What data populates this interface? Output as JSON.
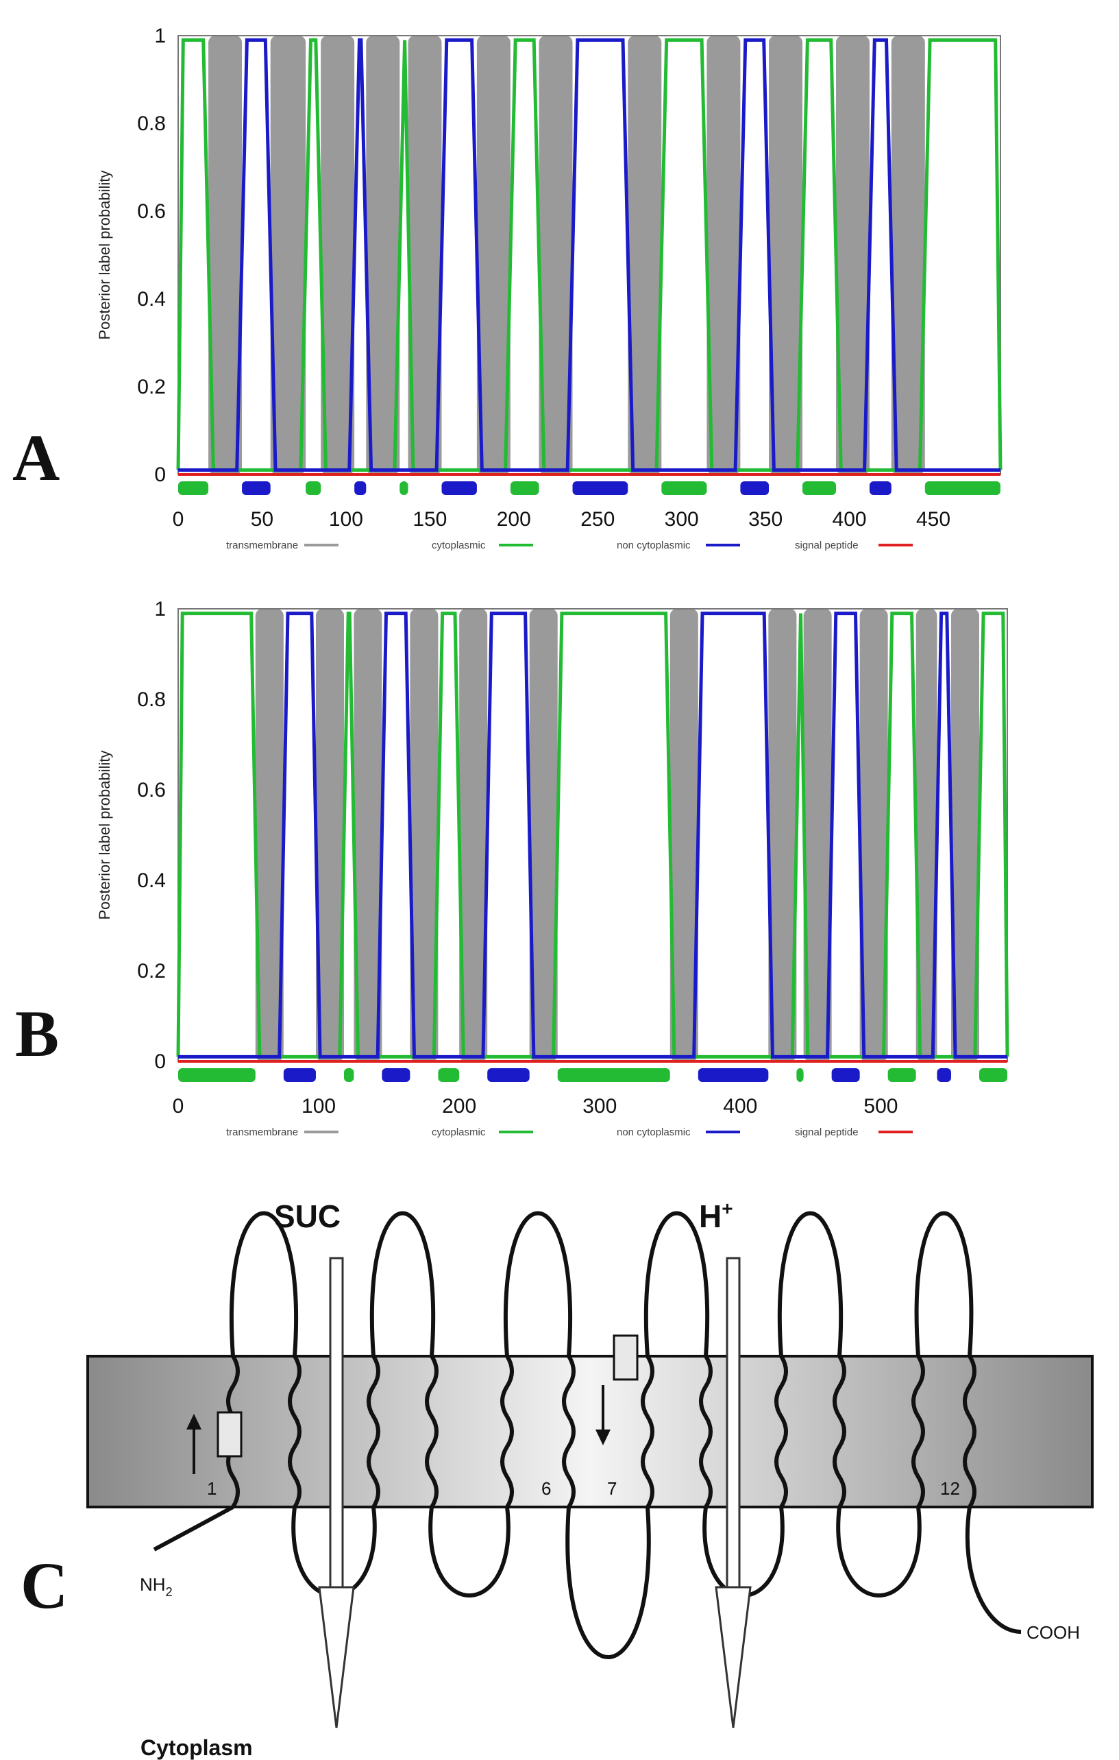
{
  "colors": {
    "transmembrane": "#9a9a9a",
    "cytoplasmic": "#22bb33",
    "non_cytoplasmic": "#1a1ac8",
    "signal_peptide": "#e02020"
  },
  "chart_data": [
    {
      "type": "line",
      "panel_label": "A",
      "ylabel": "Posterior label probability",
      "xlim": [
        0,
        490
      ],
      "ylim": [
        0,
        1
      ],
      "xticks": [
        0,
        50,
        100,
        150,
        200,
        250,
        300,
        350,
        400,
        450
      ],
      "yticks": [
        0,
        0.2,
        0.4,
        0.6,
        0.8,
        1
      ],
      "legend": [
        "transmembrane",
        "cytoplasmic",
        "non cytoplasmic",
        "signal peptide"
      ],
      "legend_position": "bottom",
      "transmembrane_segments": [
        [
          18,
          38
        ],
        [
          55,
          76
        ],
        [
          85,
          105
        ],
        [
          112,
          132
        ],
        [
          137,
          157
        ],
        [
          178,
          198
        ],
        [
          215,
          235
        ],
        [
          268,
          288
        ],
        [
          315,
          335
        ],
        [
          352,
          372
        ],
        [
          392,
          412
        ],
        [
          425,
          445
        ]
      ],
      "topology_track": [
        {
          "type": "cytoplasmic",
          "x": [
            0,
            18
          ]
        },
        {
          "type": "non_cytoplasmic",
          "x": [
            38,
            55
          ]
        },
        {
          "type": "cytoplasmic",
          "x": [
            76,
            85
          ]
        },
        {
          "type": "non_cytoplasmic",
          "x": [
            105,
            112
          ]
        },
        {
          "type": "cytoplasmic",
          "x": [
            132,
            137
          ]
        },
        {
          "type": "non_cytoplasmic",
          "x": [
            157,
            178
          ]
        },
        {
          "type": "cytoplasmic",
          "x": [
            198,
            215
          ]
        },
        {
          "type": "non_cytoplasmic",
          "x": [
            235,
            268
          ]
        },
        {
          "type": "cytoplasmic",
          "x": [
            288,
            315
          ]
        },
        {
          "type": "non_cytoplasmic",
          "x": [
            335,
            352
          ]
        },
        {
          "type": "cytoplasmic",
          "x": [
            372,
            392
          ]
        },
        {
          "type": "non_cytoplasmic",
          "x": [
            412,
            425
          ]
        },
        {
          "type": "cytoplasmic",
          "x": [
            445,
            490
          ]
        }
      ]
    },
    {
      "type": "line",
      "panel_label": "B",
      "ylabel": "Posterior label probability",
      "xlim": [
        0,
        590
      ],
      "ylim": [
        0,
        1
      ],
      "xticks": [
        0,
        100,
        200,
        300,
        400,
        500
      ],
      "yticks": [
        0,
        0.2,
        0.4,
        0.6,
        0.8,
        1
      ],
      "legend": [
        "transmembrane",
        "cytoplasmic",
        "non cytoplasmic",
        "signal peptide"
      ],
      "legend_position": "bottom",
      "transmembrane_segments": [
        [
          55,
          75
        ],
        [
          98,
          118
        ],
        [
          125,
          145
        ],
        [
          165,
          185
        ],
        [
          200,
          220
        ],
        [
          250,
          270
        ],
        [
          350,
          370
        ],
        [
          420,
          440
        ],
        [
          445,
          465
        ],
        [
          485,
          505
        ],
        [
          525,
          540
        ],
        [
          550,
          570
        ]
      ],
      "topology_track": [
        {
          "type": "cytoplasmic",
          "x": [
            0,
            55
          ]
        },
        {
          "type": "non_cytoplasmic",
          "x": [
            75,
            98
          ]
        },
        {
          "type": "cytoplasmic",
          "x": [
            118,
            125
          ]
        },
        {
          "type": "non_cytoplasmic",
          "x": [
            145,
            165
          ]
        },
        {
          "type": "cytoplasmic",
          "x": [
            185,
            200
          ]
        },
        {
          "type": "non_cytoplasmic",
          "x": [
            220,
            250
          ]
        },
        {
          "type": "cytoplasmic",
          "x": [
            270,
            350
          ]
        },
        {
          "type": "non_cytoplasmic",
          "x": [
            370,
            420
          ]
        },
        {
          "type": "cytoplasmic",
          "x": [
            440,
            445
          ]
        },
        {
          "type": "non_cytoplasmic",
          "x": [
            465,
            485
          ]
        },
        {
          "type": "cytoplasmic",
          "x": [
            505,
            525
          ]
        },
        {
          "type": "non_cytoplasmic",
          "x": [
            540,
            550
          ]
        },
        {
          "type": "cytoplasmic",
          "x": [
            570,
            590
          ]
        }
      ]
    }
  ],
  "diagram": {
    "panel_label": "C",
    "substrate_label": "SUC",
    "proton_label": "H",
    "proton_sup": "+",
    "n_terminus": "NH",
    "n_terminus_sub": "2",
    "c_terminus": "COOH",
    "compartment": "Cytoplasm",
    "helix_numbers": [
      "1",
      "6",
      "7",
      "12"
    ]
  }
}
